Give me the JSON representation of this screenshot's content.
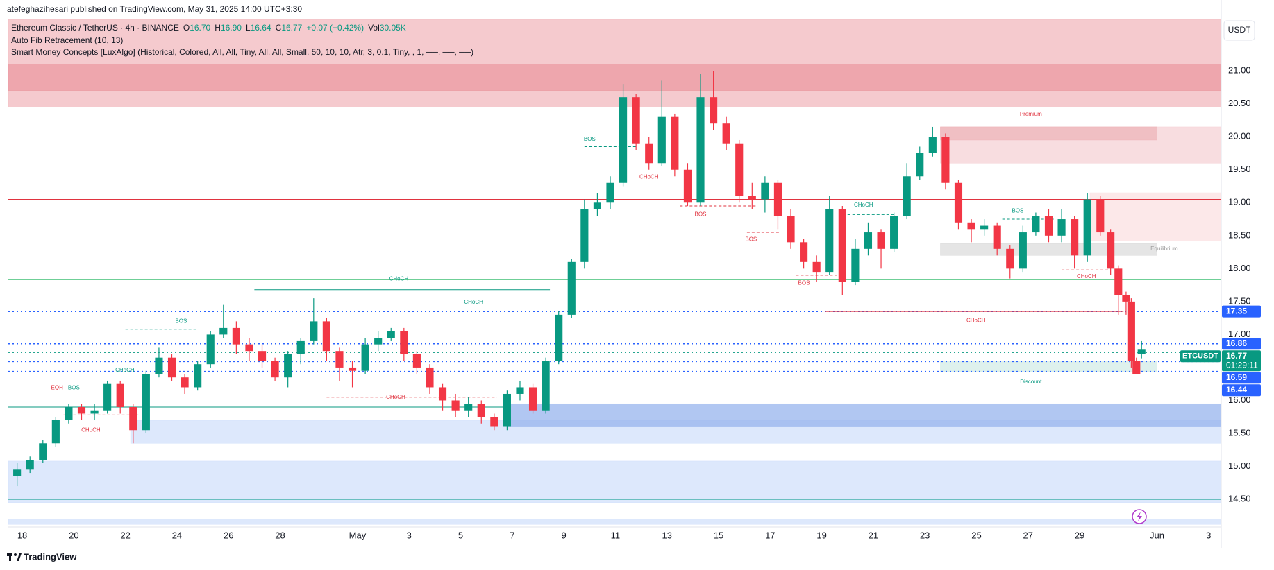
{
  "chart_data": {
    "type": "candlestick",
    "publisher": "atefeghazihesari published on TradingView.com, May 31, 2025 14:00 UTC+3:30",
    "symbol": "Ethereum Classic / TetherUS · 4h · BINANCE",
    "legend_stats": [
      {
        "key": "O",
        "value": "16.70"
      },
      {
        "key": "H",
        "value": "16.90"
      },
      {
        "key": "L",
        "value": "16.64"
      },
      {
        "key": "C",
        "value": "16.77"
      },
      {
        "key": "",
        "value": "+0.07 (+0.42%)"
      },
      {
        "key": "Vol",
        "value": "30.05K"
      }
    ],
    "indicators": [
      "Auto Fib Retracement (10, 13)",
      "Smart Money Concepts [LuxAlgo] (Historical, Colored, All, All, Tiny, All, All, Small, 50, 10, 10, Atr, 3, 0.1, Tiny, , 1, ──, ──, ──)"
    ],
    "currency": "USDT",
    "footer": "TradingView",
    "up_color": "#089981",
    "down_color": "#f23645",
    "xlim": [
      17.46,
      64.49
    ],
    "ylim": [
      14.08,
      21.78
    ],
    "xticks": [
      18,
      20,
      22,
      24,
      26,
      28,
      {
        "value": 31,
        "label": "May"
      },
      {
        "value": 33,
        "label": "3"
      },
      {
        "value": 35,
        "label": "5"
      },
      {
        "value": 37,
        "label": "7"
      },
      {
        "value": 39,
        "label": "9"
      },
      {
        "value": 41,
        "label": "11"
      },
      {
        "value": 43,
        "label": "13"
      },
      {
        "value": 45,
        "label": "15"
      },
      {
        "value": 47,
        "label": "17"
      },
      {
        "value": 49,
        "label": "19"
      },
      {
        "value": 51,
        "label": "21"
      },
      {
        "value": 53,
        "label": "23"
      },
      {
        "value": 55,
        "label": "25"
      },
      {
        "value": 57,
        "label": "27"
      },
      {
        "value": 59,
        "label": "29"
      },
      {
        "value": 62,
        "label": "Jun"
      },
      {
        "value": 64,
        "label": "3"
      }
    ],
    "yticks": [
      {
        "value": 14.5,
        "label": "14.50"
      },
      {
        "value": 15,
        "label": "15.00"
      },
      {
        "value": 15.5,
        "label": "15.50"
      },
      {
        "value": 16,
        "label": "16.00"
      },
      {
        "value": 16.5,
        "label": "16.50"
      },
      {
        "value": 17,
        "label": "17.00"
      },
      {
        "value": 17.5,
        "label": "17.50"
      },
      {
        "value": 18,
        "label": "18.00"
      },
      {
        "value": 18.5,
        "label": "18.50"
      },
      {
        "value": 19,
        "label": "19.00"
      },
      {
        "value": 19.5,
        "label": "19.50"
      },
      {
        "value": 20,
        "label": "20.00"
      },
      {
        "value": 20.5,
        "label": "20.50"
      },
      {
        "value": 21,
        "label": "21.00"
      }
    ],
    "grid": false,
    "x": [
      17.8,
      18.3,
      18.8,
      19.3,
      19.8,
      20.3,
      20.8,
      21.3,
      21.8,
      22.3,
      22.8,
      23.3,
      23.8,
      24.3,
      24.8,
      25.3,
      25.8,
      26.3,
      26.8,
      27.3,
      27.8,
      28.3,
      28.8,
      29.3,
      29.8,
      30.3,
      30.8,
      31.3,
      31.8,
      32.3,
      32.8,
      33.3,
      33.8,
      34.3,
      34.8,
      35.3,
      35.8,
      36.3,
      36.8,
      37.3,
      37.8,
      38.3,
      38.8,
      39.3,
      39.8,
      40.3,
      40.8,
      41.3,
      41.8,
      42.3,
      42.8,
      43.3,
      43.8,
      44.3,
      44.8,
      45.3,
      45.8,
      46.3,
      46.8,
      47.3,
      47.8,
      48.3,
      48.8,
      49.3,
      49.8,
      50.3,
      50.8,
      51.3,
      51.8,
      52.3,
      52.8,
      53.3,
      53.8,
      54.3,
      54.8,
      55.3,
      55.8,
      56.3,
      56.8,
      57.3,
      57.8,
      58.3,
      58.8,
      59.3,
      59.8,
      60.2,
      60.5,
      60.8,
      61.0,
      61.2,
      61.4
    ],
    "open": [
      14.85,
      14.95,
      15.1,
      15.35,
      15.7,
      15.9,
      15.8,
      15.85,
      16.25,
      15.9,
      15.55,
      16.4,
      16.65,
      16.35,
      16.2,
      16.55,
      17.0,
      17.1,
      16.85,
      16.75,
      16.6,
      16.35,
      16.7,
      16.9,
      17.2,
      16.75,
      16.5,
      16.45,
      16.85,
      16.95,
      17.05,
      16.7,
      16.5,
      16.2,
      16.0,
      15.85,
      15.95,
      15.75,
      15.6,
      16.1,
      16.2,
      15.85,
      16.6,
      17.3,
      18.1,
      18.9,
      19.0,
      19.3,
      20.6,
      19.9,
      19.6,
      20.3,
      19.5,
      19.0,
      20.6,
      20.2,
      19.9,
      19.1,
      19.05,
      19.3,
      18.8,
      18.4,
      18.1,
      17.95,
      18.9,
      17.8,
      18.3,
      18.55,
      18.3,
      18.8,
      19.4,
      19.75,
      20.0,
      19.3,
      18.7,
      18.6,
      18.65,
      18.3,
      18.0,
      18.55,
      18.8,
      18.5,
      18.75,
      18.2,
      19.05,
      18.55,
      18.0,
      17.6,
      17.5,
      16.6,
      16.7
    ],
    "high": [
      15.05,
      15.15,
      15.4,
      15.75,
      15.95,
      15.95,
      15.95,
      16.3,
      16.3,
      15.95,
      16.45,
      16.8,
      16.7,
      16.4,
      16.6,
      17.05,
      17.45,
      17.2,
      16.95,
      16.85,
      16.65,
      16.75,
      16.95,
      17.55,
      17.25,
      16.8,
      16.6,
      16.95,
      17.05,
      17.1,
      17.1,
      16.75,
      16.55,
      16.25,
      16.1,
      16.05,
      16.0,
      15.8,
      16.15,
      16.3,
      16.25,
      16.65,
      17.35,
      18.15,
      19.05,
      19.15,
      19.4,
      20.8,
      20.65,
      20.0,
      20.85,
      20.35,
      19.6,
      20.95,
      21.0,
      20.3,
      19.95,
      19.3,
      19.4,
      19.35,
      18.9,
      18.45,
      18.2,
      19.1,
      18.95,
      18.45,
      18.7,
      18.6,
      18.85,
      19.6,
      19.85,
      20.15,
      20.05,
      19.35,
      18.75,
      18.75,
      18.7,
      18.35,
      18.65,
      18.85,
      18.9,
      18.9,
      18.8,
      19.15,
      19.1,
      18.6,
      18.05,
      17.65,
      17.55,
      16.65,
      16.9
    ],
    "low": [
      14.7,
      14.9,
      15.05,
      15.3,
      15.65,
      15.7,
      15.7,
      15.8,
      15.8,
      15.35,
      15.5,
      16.35,
      16.3,
      16.1,
      16.15,
      16.5,
      16.95,
      16.7,
      16.6,
      16.5,
      16.3,
      16.2,
      16.55,
      16.85,
      16.6,
      16.3,
      16.2,
      16.4,
      16.75,
      16.9,
      16.6,
      16.4,
      16.1,
      15.85,
      15.75,
      15.75,
      15.65,
      15.55,
      15.55,
      16.0,
      15.8,
      15.8,
      16.55,
      17.25,
      18.0,
      18.8,
      18.9,
      19.25,
      19.8,
      19.5,
      19.55,
      19.4,
      18.95,
      18.95,
      20.1,
      19.8,
      19.0,
      18.9,
      18.85,
      18.6,
      18.3,
      18.0,
      17.8,
      17.9,
      17.6,
      17.75,
      18.2,
      18.0,
      18.25,
      18.75,
      19.35,
      19.7,
      19.2,
      18.6,
      18.4,
      18.5,
      18.2,
      17.85,
      17.95,
      18.5,
      18.4,
      18.4,
      18.0,
      18.1,
      18.5,
      17.9,
      17.3,
      17.3,
      16.5,
      16.4,
      16.64
    ],
    "close": [
      14.95,
      15.1,
      15.35,
      15.7,
      15.9,
      15.8,
      15.85,
      16.25,
      15.9,
      15.55,
      16.4,
      16.65,
      16.35,
      16.2,
      16.55,
      17.0,
      17.1,
      16.85,
      16.75,
      16.6,
      16.35,
      16.7,
      16.9,
      17.2,
      16.75,
      16.5,
      16.45,
      16.85,
      16.95,
      17.05,
      16.7,
      16.5,
      16.2,
      16.0,
      15.85,
      15.95,
      15.75,
      15.6,
      16.1,
      16.2,
      15.85,
      16.6,
      17.3,
      18.1,
      18.9,
      19.0,
      19.3,
      20.6,
      19.9,
      19.6,
      20.3,
      19.5,
      19.0,
      20.6,
      20.2,
      19.9,
      19.1,
      19.05,
      19.3,
      18.8,
      18.4,
      18.1,
      17.95,
      18.9,
      17.8,
      18.3,
      18.55,
      18.3,
      18.8,
      19.4,
      19.75,
      20.0,
      19.3,
      18.7,
      18.6,
      18.65,
      18.3,
      18.0,
      18.55,
      18.8,
      18.5,
      18.75,
      18.2,
      19.05,
      18.55,
      18.0,
      17.6,
      17.5,
      16.6,
      16.4,
      16.77
    ],
    "zones": [
      {
        "x": [
          17.46,
          64.49
        ],
        "y": [
          20.45,
          21.78
        ],
        "color": "#f2b8bd"
      },
      {
        "x": [
          17.46,
          64.49
        ],
        "y": [
          20.7,
          21.1
        ],
        "color": "#eb9aa2"
      },
      {
        "x": [
          53.6,
          64.49
        ],
        "y": [
          19.6,
          20.15
        ],
        "color": "#f5d2d5"
      },
      {
        "x": [
          53.6,
          62.0
        ],
        "y": [
          19.95,
          20.15
        ],
        "color": "#eeb4b9"
      },
      {
        "x": [
          59.4,
          64.49
        ],
        "y": [
          18.42,
          19.15
        ],
        "color": "#fbe0e2"
      },
      {
        "x": [
          53.6,
          62.0
        ],
        "y": [
          18.2,
          18.38
        ],
        "color": "#dcdcdc"
      },
      {
        "x": [
          53.6,
          62.0
        ],
        "y": [
          16.44,
          16.59
        ],
        "color": "#d3ece7"
      },
      {
        "x": [
          22.2,
          64.49
        ],
        "y": [
          15.35,
          15.7
        ],
        "color": "#d2e0fb"
      },
      {
        "x": [
          36.8,
          64.49
        ],
        "y": [
          15.6,
          15.95
        ],
        "color": "#97b4ee"
      },
      {
        "x": [
          17.46,
          64.49
        ],
        "y": [
          14.45,
          15.08
        ],
        "color": "#d2e0fb"
      },
      {
        "x": [
          17.46,
          64.49
        ],
        "y": [
          14.12,
          14.2
        ],
        "color": "#d2e0fb"
      }
    ],
    "levels": [
      {
        "value": 19.05,
        "color": "#e0333f",
        "dash": false
      },
      {
        "value": 17.83,
        "color": "#6fcf97",
        "dash": false
      },
      {
        "value": 17.35,
        "color": "#2962ff",
        "dash": true
      },
      {
        "value": 16.86,
        "color": "#2962ff",
        "dash": true
      },
      {
        "value": 16.73,
        "color": "#089981",
        "dash": true
      },
      {
        "value": 16.59,
        "color": "#2962ff",
        "dash": true
      },
      {
        "value": 16.44,
        "color": "#2962ff",
        "dash": true
      },
      {
        "value": 14.5,
        "color": "#26a69a",
        "dash": false
      }
    ],
    "segments": [
      {
        "x": [
          27.0,
          38.46
        ],
        "y": 17.68,
        "color": "#089981",
        "dash": false
      },
      {
        "x": [
          49.14,
          60.7
        ],
        "y": 17.35,
        "color": "#e0333f",
        "dash": false
      },
      {
        "x": [
          17.46,
          36.8
        ],
        "y": 15.9,
        "color": "#089981",
        "dash": false
      },
      {
        "x": [
          39.8,
          41.8
        ],
        "y": 19.85,
        "color": "#089981",
        "dash": true
      },
      {
        "x": [
          43.5,
          46.5
        ],
        "y": 18.95,
        "color": "#e0333f",
        "dash": true
      },
      {
        "x": [
          46.1,
          47.4
        ],
        "y": 18.55,
        "color": "#e0333f",
        "dash": true
      },
      {
        "x": [
          48.0,
          49.6
        ],
        "y": 17.9,
        "color": "#e0333f",
        "dash": true
      },
      {
        "x": [
          50.0,
          51.8
        ],
        "y": 18.82,
        "color": "#089981",
        "dash": true
      },
      {
        "x": [
          56.0,
          58.0
        ],
        "y": 18.75,
        "color": "#089981",
        "dash": true
      },
      {
        "x": [
          58.3,
          60.1
        ],
        "y": 17.98,
        "color": "#e0333f",
        "dash": true
      },
      {
        "x": [
          29.8,
          36.4
        ],
        "y": 16.05,
        "color": "#e0333f",
        "dash": true
      },
      {
        "x": [
          22.0,
          24.8
        ],
        "y": 17.08,
        "color": "#089981",
        "dash": true
      },
      {
        "x": [
          19.6,
          22.5
        ],
        "y": 15.78,
        "color": "#e0333f",
        "dash": true
      }
    ],
    "annotations": [
      {
        "text": "CHoCH",
        "x": 32.6,
        "y": 17.84,
        "color": "#089981"
      },
      {
        "text": "CHoCH",
        "x": 35.5,
        "y": 17.49,
        "color": "#089981"
      },
      {
        "text": "BOS",
        "x": 24.16,
        "y": 17.2,
        "color": "#089981"
      },
      {
        "text": "EQH",
        "x": 19.35,
        "y": 16.19,
        "color": "#e0333f"
      },
      {
        "text": "BOS",
        "x": 20.0,
        "y": 16.19,
        "color": "#089981"
      },
      {
        "text": "CHoCH",
        "x": 21.98,
        "y": 16.46,
        "color": "#089981"
      },
      {
        "text": "CHoCH",
        "x": 20.66,
        "y": 15.55,
        "color": "#e0333f"
      },
      {
        "text": "CHoCH",
        "x": 32.48,
        "y": 16.05,
        "color": "#e0333f"
      },
      {
        "text": "BOS",
        "x": 40.0,
        "y": 19.96,
        "color": "#089981"
      },
      {
        "text": "CHoCH",
        "x": 42.3,
        "y": 19.39,
        "color": "#e0333f"
      },
      {
        "text": "BOS",
        "x": 44.3,
        "y": 18.82,
        "color": "#e0333f"
      },
      {
        "text": "BOS",
        "x": 46.26,
        "y": 18.44,
        "color": "#e0333f"
      },
      {
        "text": "BOS",
        "x": 48.31,
        "y": 17.78,
        "color": "#e0333f"
      },
      {
        "text": "CHoCH",
        "x": 50.62,
        "y": 18.96,
        "color": "#089981"
      },
      {
        "text": "BOS",
        "x": 56.6,
        "y": 18.87,
        "color": "#089981"
      },
      {
        "text": "CHoCH",
        "x": 59.26,
        "y": 17.88,
        "color": "#e0333f"
      },
      {
        "text": "CHoCH",
        "x": 54.98,
        "y": 17.21,
        "color": "#e0333f"
      },
      {
        "text": "Premium",
        "x": 57.11,
        "y": 20.34,
        "color": "#e0333f"
      },
      {
        "text": "Equilibrium",
        "x": 62.28,
        "y": 18.3,
        "color": "#999999"
      },
      {
        "text": "Discount",
        "x": 57.11,
        "y": 16.28,
        "color": "#089981"
      }
    ],
    "price_tags": [
      {
        "value": 17.35,
        "label": "17.35",
        "color": "#2962ff"
      },
      {
        "value": 16.86,
        "label": "16.86",
        "color": "#2962ff"
      },
      {
        "value": 16.77,
        "label": "16.77",
        "symbol": "ETCUSDT",
        "countdown": "01:29:11",
        "color": "#089981"
      },
      {
        "value": 16.59,
        "label": "16.59",
        "color": "#2962ff"
      },
      {
        "value": 16.44,
        "label": "16.44",
        "color": "#2962ff"
      }
    ]
  }
}
